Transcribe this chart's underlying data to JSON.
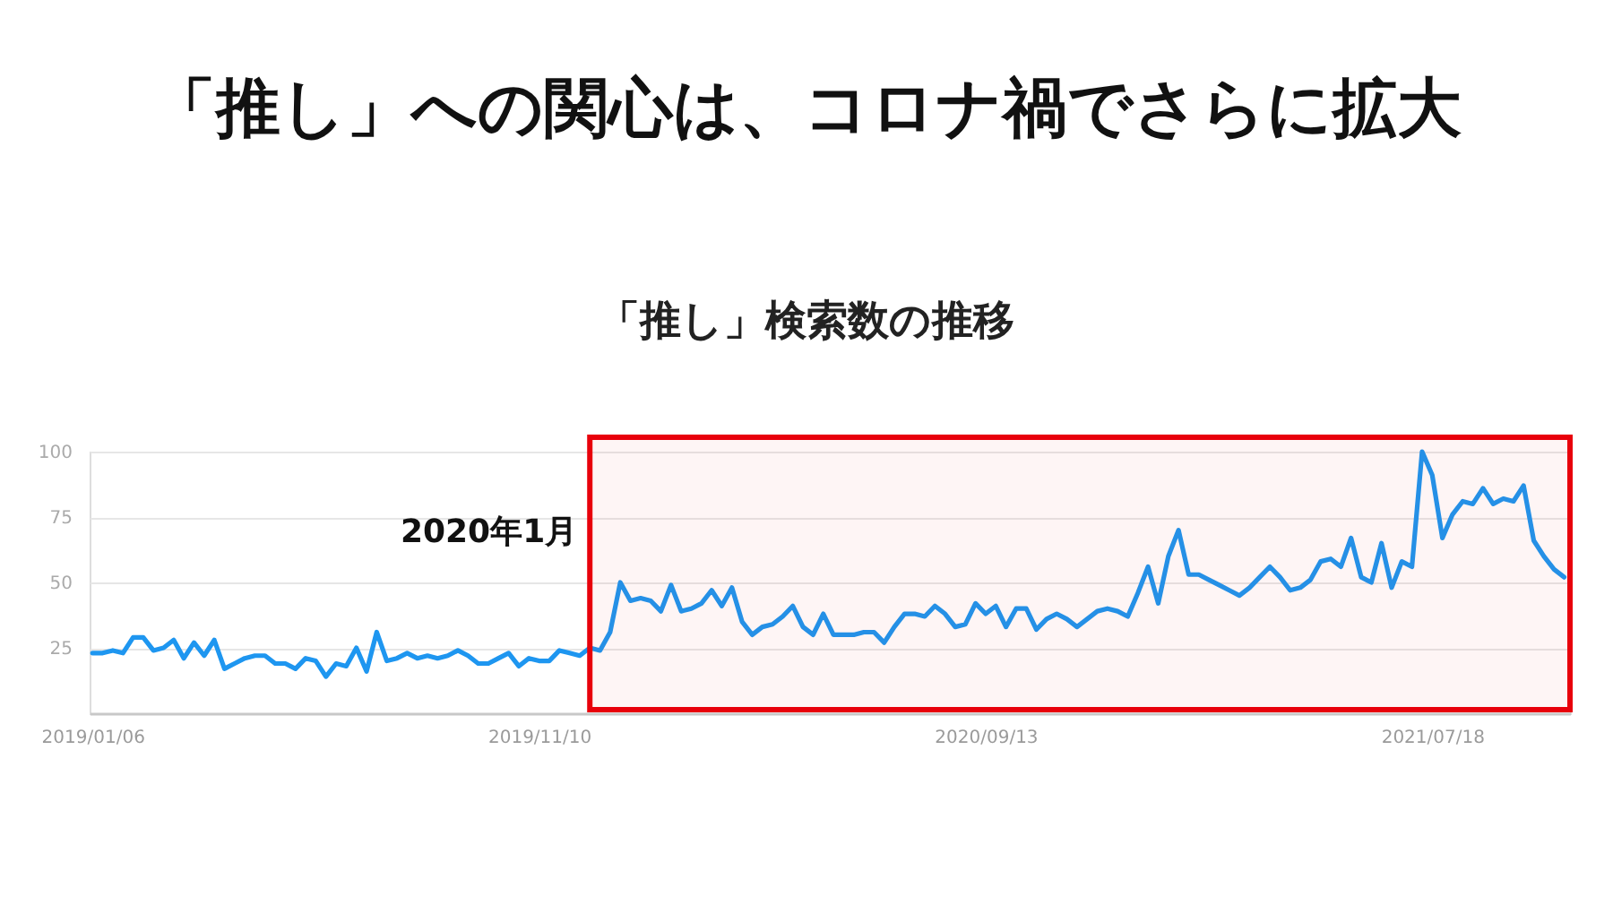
{
  "chart_data": {
    "type": "line",
    "title": "「推し」への関心は、コロナ禍でさらに拡大",
    "subtitle": "「推し」検索数の推移",
    "x": [
      "2019-01-06",
      "2019-01-13",
      "2019-01-20",
      "2019-01-27",
      "2019-02-03",
      "2019-02-10",
      "2019-02-17",
      "2019-02-24",
      "2019-03-03",
      "2019-03-10",
      "2019-03-17",
      "2019-03-24",
      "2019-03-31",
      "2019-04-07",
      "2019-04-14",
      "2019-04-21",
      "2019-04-28",
      "2019-05-05",
      "2019-05-12",
      "2019-05-19",
      "2019-05-26",
      "2019-06-02",
      "2019-06-09",
      "2019-06-16",
      "2019-06-23",
      "2019-06-30",
      "2019-07-07",
      "2019-07-14",
      "2019-07-21",
      "2019-07-28",
      "2019-08-04",
      "2019-08-11",
      "2019-08-18",
      "2019-08-25",
      "2019-09-01",
      "2019-09-08",
      "2019-09-15",
      "2019-09-22",
      "2019-09-29",
      "2019-10-06",
      "2019-10-13",
      "2019-10-20",
      "2019-10-27",
      "2019-11-03",
      "2019-11-10",
      "2019-11-17",
      "2019-11-24",
      "2019-12-01",
      "2019-12-08",
      "2019-12-15",
      "2019-12-22",
      "2019-12-29",
      "2020-01-05",
      "2020-01-12",
      "2020-01-19",
      "2020-01-26",
      "2020-02-02",
      "2020-02-09",
      "2020-02-16",
      "2020-02-23",
      "2020-03-01",
      "2020-03-08",
      "2020-03-15",
      "2020-03-22",
      "2020-03-29",
      "2020-04-05",
      "2020-04-12",
      "2020-04-19",
      "2020-04-26",
      "2020-05-03",
      "2020-05-10",
      "2020-05-17",
      "2020-05-24",
      "2020-05-31",
      "2020-06-07",
      "2020-06-14",
      "2020-06-21",
      "2020-06-28",
      "2020-07-05",
      "2020-07-12",
      "2020-07-19",
      "2020-07-26",
      "2020-08-02",
      "2020-08-09",
      "2020-08-16",
      "2020-08-23",
      "2020-08-30",
      "2020-09-06",
      "2020-09-13",
      "2020-09-20",
      "2020-09-27",
      "2020-10-04",
      "2020-10-11",
      "2020-10-18",
      "2020-10-25",
      "2020-11-01",
      "2020-11-08",
      "2020-11-15",
      "2020-11-22",
      "2020-11-29",
      "2020-12-06",
      "2020-12-13",
      "2020-12-20",
      "2020-12-27",
      "2021-01-03",
      "2021-01-10",
      "2021-01-17",
      "2021-01-24",
      "2021-01-31",
      "2021-02-07",
      "2021-02-14",
      "2021-02-21",
      "2021-02-28",
      "2021-03-07",
      "2021-03-14",
      "2021-03-21",
      "2021-03-28",
      "2021-04-04",
      "2021-04-11",
      "2021-04-18",
      "2021-04-25",
      "2021-05-02",
      "2021-05-09",
      "2021-05-16",
      "2021-05-23",
      "2021-05-30",
      "2021-06-06",
      "2021-06-13",
      "2021-06-20",
      "2021-06-27",
      "2021-07-04",
      "2021-07-11",
      "2021-07-18",
      "2021-07-25",
      "2021-08-01",
      "2021-08-08",
      "2021-08-15",
      "2021-08-22",
      "2021-08-29",
      "2021-09-05",
      "2021-09-12",
      "2021-09-19",
      "2021-09-26",
      "2021-10-03",
      "2021-10-10",
      "2021-10-17"
    ],
    "series": [
      {
        "color": "#1e96f0",
        "values": [
          23,
          23,
          24,
          23,
          29,
          29,
          24,
          25,
          28,
          21,
          27,
          22,
          28,
          17,
          19,
          21,
          22,
          22,
          19,
          19,
          17,
          21,
          20,
          14,
          19,
          18,
          25,
          16,
          31,
          20,
          21,
          23,
          21,
          22,
          21,
          22,
          24,
          22,
          19,
          19,
          21,
          23,
          18,
          21,
          20,
          20,
          24,
          23,
          22,
          25,
          24,
          31,
          50,
          43,
          44,
          43,
          39,
          49,
          39,
          40,
          42,
          47,
          41,
          48,
          35,
          30,
          33,
          34,
          37,
          41,
          33,
          30,
          38,
          30,
          30,
          30,
          31,
          31,
          27,
          33,
          38,
          38,
          37,
          41,
          38,
          33,
          34,
          42,
          38,
          41,
          33,
          40,
          40,
          32,
          36,
          38,
          36,
          33,
          36,
          39,
          40,
          39,
          37,
          46,
          56,
          42,
          60,
          70,
          53,
          53,
          51,
          49,
          47,
          45,
          48,
          52,
          56,
          52,
          47,
          48,
          51,
          58,
          59,
          56,
          67,
          52,
          50,
          65,
          48,
          58,
          56,
          100,
          91,
          67,
          76,
          81,
          80,
          86,
          80,
          82,
          81,
          87,
          66,
          60,
          55,
          52
        ]
      }
    ],
    "xlim": [
      "2019-01-04",
      "2021-10-21"
    ],
    "xticks": [
      {
        "value": "2019-01-06",
        "label": "2019/01/06"
      },
      {
        "value": "2019-11-10",
        "label": "2019/11/10"
      },
      {
        "value": "2020-09-13",
        "label": "2020/09/13"
      },
      {
        "value": "2021-07-18",
        "label": "2021/07/18"
      }
    ],
    "ylim": [
      0,
      100
    ],
    "yticks": [
      25,
      50,
      75,
      100
    ],
    "grid": "y",
    "line_style": "solid",
    "bands": [
      {
        "axis": "x",
        "from": "2019-12-15",
        "to": "2021-10-21",
        "label": "2020年1月",
        "color": "#e8000b"
      }
    ]
  }
}
